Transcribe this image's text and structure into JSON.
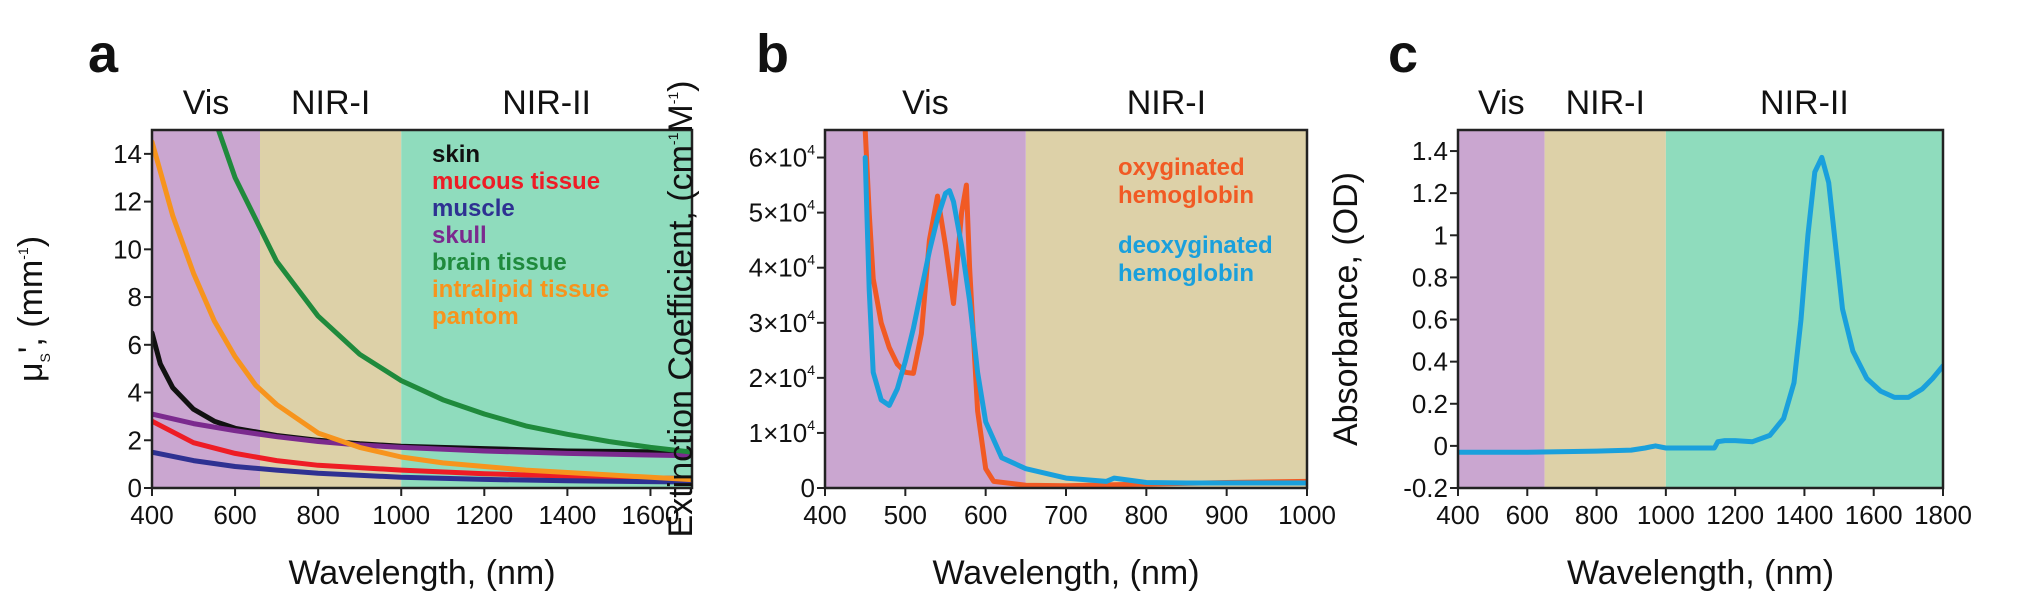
{
  "colors": {
    "vis": "#caa6d0",
    "nir1": "#ddd1a8",
    "nir2": "#8fdcbd"
  },
  "chart_data": [
    {
      "panel": "a",
      "type": "line",
      "regions": [
        {
          "label": "Vis",
          "start": 400,
          "end": 660,
          "color": "#caa6d0"
        },
        {
          "label": "NIR-I",
          "start": 660,
          "end": 1000,
          "color": "#ddd1a8"
        },
        {
          "label": "NIR-II",
          "start": 1000,
          "end": 1700,
          "color": "#8fdcbd"
        }
      ],
      "xlim": [
        400,
        1700
      ],
      "ylim": [
        0,
        15
      ],
      "xticks": [
        400,
        600,
        800,
        1000,
        1200,
        1400,
        1600
      ],
      "xtick_labels": [
        "400",
        "600",
        "800",
        "1000",
        "1200",
        "1400",
        "1600"
      ],
      "yticks": [
        0,
        2,
        4,
        6,
        8,
        10,
        12,
        14
      ],
      "ytick_labels": [
        "0",
        "2",
        "4",
        "6",
        "8",
        "10",
        "12",
        "14"
      ],
      "xlabel": "Wavelength, (nm)",
      "ylabel_base": "μ",
      "ylabel_sub": "S",
      "ylabel_mid": "', (mm",
      "ylabel_sup": "-1",
      "ylabel_end": ")",
      "series": [
        {
          "name": "skin",
          "color": "#111111",
          "x": [
            400,
            420,
            450,
            500,
            550,
            600,
            650,
            700,
            800,
            900,
            1000,
            1200,
            1400,
            1700
          ],
          "y": [
            6.5,
            5.2,
            4.2,
            3.3,
            2.8,
            2.5,
            2.35,
            2.2,
            2.0,
            1.85,
            1.75,
            1.65,
            1.55,
            1.5
          ]
        },
        {
          "name": "mucous tissue",
          "color": "#ee1c25",
          "x": [
            400,
            500,
            600,
            700,
            800,
            1000,
            1200,
            1400,
            1600,
            1700
          ],
          "y": [
            2.8,
            1.9,
            1.45,
            1.15,
            0.95,
            0.75,
            0.6,
            0.5,
            0.42,
            0.4
          ]
        },
        {
          "name": "muscle",
          "color": "#2e3192",
          "x": [
            400,
            500,
            600,
            700,
            800,
            1000,
            1200,
            1400,
            1700
          ],
          "y": [
            1.5,
            1.15,
            0.9,
            0.75,
            0.62,
            0.45,
            0.36,
            0.3,
            0.25
          ]
        },
        {
          "name": "skull",
          "color": "#7b2a8e",
          "x": [
            400,
            500,
            600,
            700,
            800,
            900,
            1000,
            1200,
            1400,
            1700
          ],
          "y": [
            3.1,
            2.7,
            2.4,
            2.15,
            1.95,
            1.8,
            1.7,
            1.55,
            1.45,
            1.35
          ]
        },
        {
          "name": "brain tissue",
          "color": "#1f8a3c",
          "x": [
            560,
            600,
            700,
            800,
            900,
            1000,
            1100,
            1200,
            1300,
            1400,
            1500,
            1600,
            1700
          ],
          "y": [
            15,
            13.0,
            9.5,
            7.2,
            5.6,
            4.5,
            3.7,
            3.1,
            2.6,
            2.25,
            1.95,
            1.7,
            1.5
          ]
        },
        {
          "name": "intralipid tissue pantom",
          "color": "#f7941d",
          "x": [
            400,
            450,
            500,
            550,
            600,
            650,
            700,
            800,
            900,
            1000,
            1100,
            1200,
            1300,
            1400,
            1500,
            1600,
            1700
          ],
          "y": [
            14.5,
            11.4,
            9.0,
            7.0,
            5.5,
            4.3,
            3.5,
            2.3,
            1.7,
            1.3,
            1.05,
            0.9,
            0.75,
            0.65,
            0.55,
            0.45,
            0.35
          ]
        }
      ],
      "legend_lines": [
        {
          "text": "skin",
          "color": "#111111"
        },
        {
          "text": "mucous tissue",
          "color": "#ee1c25"
        },
        {
          "text": "muscle",
          "color": "#2e3192"
        },
        {
          "text": "skull",
          "color": "#7b2a8e"
        },
        {
          "text": "brain tissue",
          "color": "#1f8a3c"
        },
        {
          "text": "intralipid tissue",
          "color": "#f7941d"
        },
        {
          "text": "pantom",
          "color": "#f7941d"
        }
      ]
    },
    {
      "panel": "b",
      "type": "line",
      "regions": [
        {
          "label": "Vis",
          "start": 400,
          "end": 650,
          "color": "#caa6d0"
        },
        {
          "label": "NIR-I",
          "start": 650,
          "end": 1000,
          "color": "#ddd1a8"
        }
      ],
      "xlim": [
        400,
        1000
      ],
      "ylim": [
        0,
        65000
      ],
      "xticks": [
        400,
        500,
        600,
        700,
        800,
        900,
        1000
      ],
      "xtick_labels": [
        "400",
        "500",
        "600",
        "700",
        "800",
        "900",
        "1000"
      ],
      "yticks": [
        10000,
        20000,
        30000,
        40000,
        50000,
        60000
      ],
      "ytick_labels": [
        "1×10",
        "2×10",
        "3×10",
        "4×10",
        "5×10",
        "6×10"
      ],
      "ytick_exp": "4",
      "ytick_zero": "0",
      "xlabel": "Wavelength, (nm)",
      "ylabel_base": "Extinction Coefficient, (cm",
      "ylabel_sup1": "-1",
      "ylabel_mid": "M",
      "ylabel_sup2": "-1",
      "ylabel_end": ")",
      "series": [
        {
          "name": "oxyginated hemoglobin",
          "color": "#f15a24",
          "x": [
            450,
            455,
            460,
            470,
            480,
            490,
            500,
            510,
            520,
            530,
            540,
            550,
            560,
            570,
            576,
            580,
            590,
            600,
            610,
            650,
            700,
            800,
            900,
            1000
          ],
          "y": [
            65000,
            50000,
            38000,
            30000,
            25500,
            22500,
            21000,
            20800,
            28000,
            45000,
            53000,
            44000,
            33500,
            50000,
            55000,
            40000,
            14000,
            3500,
            1200,
            500,
            400,
            700,
            1000,
            1200
          ]
        },
        {
          "name": "deoxyginated hemoglobin",
          "color": "#1aa0dc",
          "x": [
            450,
            455,
            460,
            470,
            480,
            490,
            500,
            510,
            520,
            530,
            540,
            550,
            555,
            560,
            570,
            580,
            590,
            600,
            620,
            650,
            700,
            750,
            760,
            800,
            850,
            900,
            1000
          ],
          "y": [
            60000,
            36000,
            21000,
            16000,
            15000,
            18000,
            23000,
            29000,
            36000,
            43000,
            49000,
            53500,
            54000,
            52000,
            44000,
            34000,
            21000,
            12000,
            5500,
            3500,
            1800,
            1200,
            1800,
            1000,
            900,
            900,
            900
          ]
        }
      ],
      "legend_lines": [
        {
          "text": "oxyginated",
          "color": "#f15a24"
        },
        {
          "text": "hemoglobin",
          "color": "#f15a24"
        },
        {
          "text": "deoxyginated",
          "color": "#1aa0dc"
        },
        {
          "text": "hemoglobin",
          "color": "#1aa0dc"
        }
      ]
    },
    {
      "panel": "c",
      "type": "line",
      "regions": [
        {
          "label": "Vis",
          "start": 400,
          "end": 650,
          "color": "#caa6d0"
        },
        {
          "label": "NIR-I",
          "start": 650,
          "end": 1000,
          "color": "#ddd1a8"
        },
        {
          "label": "NIR-II",
          "start": 1000,
          "end": 1800,
          "color": "#8fdcbd"
        }
      ],
      "xlim": [
        400,
        1800
      ],
      "ylim": [
        -0.2,
        1.5
      ],
      "xticks": [
        400,
        600,
        800,
        1000,
        1200,
        1400,
        1600,
        1800
      ],
      "xtick_labels": [
        "400",
        "600",
        "800",
        "1000",
        "1200",
        "1400",
        "1600",
        "1800"
      ],
      "yticks": [
        -0.2,
        0,
        0.2,
        0.4,
        0.6,
        0.8,
        1,
        1.2,
        1.4
      ],
      "ytick_labels": [
        "-0.2",
        "0",
        "0.2",
        "0.4",
        "0.6",
        "0.8",
        "1",
        "1.2",
        "1.4"
      ],
      "xlabel": "Wavelength, (nm)",
      "ylabel": "Absorbance, (OD)",
      "series": [
        {
          "name": "absorbance",
          "color": "#1aa0dc",
          "x": [
            400,
            600,
            800,
            900,
            940,
            970,
            1000,
            1050,
            1140,
            1150,
            1170,
            1200,
            1250,
            1300,
            1340,
            1370,
            1390,
            1410,
            1430,
            1450,
            1470,
            1490,
            1510,
            1540,
            1580,
            1620,
            1660,
            1700,
            1740,
            1770,
            1800
          ],
          "y": [
            -0.03,
            -0.03,
            -0.025,
            -0.02,
            -0.01,
            0.0,
            -0.01,
            -0.01,
            -0.01,
            0.02,
            0.025,
            0.025,
            0.02,
            0.05,
            0.13,
            0.3,
            0.6,
            1.0,
            1.3,
            1.37,
            1.25,
            0.95,
            0.65,
            0.45,
            0.32,
            0.26,
            0.23,
            0.23,
            0.27,
            0.32,
            0.38
          ]
        }
      ]
    }
  ]
}
